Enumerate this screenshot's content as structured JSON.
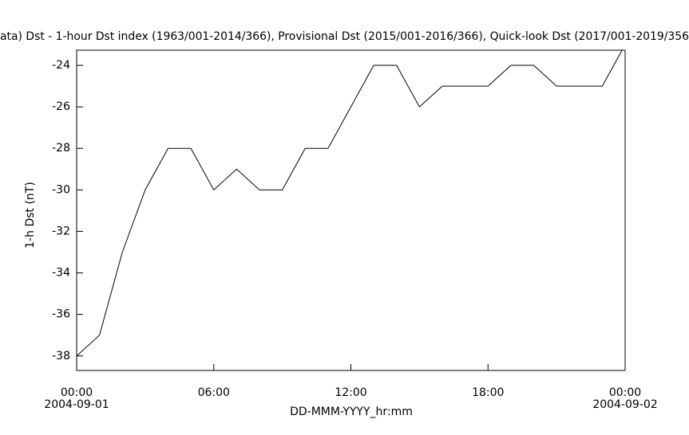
{
  "chart_data": {
    "type": "line",
    "title": "ata)  Dst - 1-hour Dst index (1963/001-2014/366), Provisional Dst (2015/001-2016/366), Quick-look Dst (2017/001-2019/356",
    "x_label": "DD-MMM-YYYY_hr:mm",
    "y_label": "1-h Dst (nT)",
    "x": [
      0,
      1,
      2,
      3,
      4,
      5,
      6,
      7,
      8,
      9,
      10,
      11,
      12,
      13,
      14,
      15,
      16,
      17,
      18,
      19,
      20,
      21,
      22,
      23,
      24
    ],
    "series": [
      {
        "color": "#000000",
        "values": [
          -38,
          -37,
          -33,
          -30,
          -28,
          -28,
          -30,
          -29,
          -30,
          -30,
          -28,
          -28,
          -26,
          -24,
          -24,
          -26,
          -25,
          -25,
          -25,
          -24,
          -24,
          -25,
          -25,
          -25,
          -23
        ]
      }
    ],
    "xlim": [
      0,
      24
    ],
    "xticks": [
      {
        "value": 0,
        "label": "00:00"
      },
      {
        "value": 6,
        "label": "06:00"
      },
      {
        "value": 12,
        "label": "12:00"
      },
      {
        "value": 18,
        "label": "18:00"
      },
      {
        "value": 24,
        "label": "00:00"
      }
    ],
    "x_dates": [
      {
        "value": 0,
        "label": "2004-09-01"
      },
      {
        "value": 24,
        "label": "2004-09-02"
      }
    ],
    "ylim": [
      -38.7,
      -23.27
    ],
    "yticks": [
      -38,
      -36,
      -34,
      -32,
      -30,
      -28,
      -26,
      -24
    ]
  }
}
